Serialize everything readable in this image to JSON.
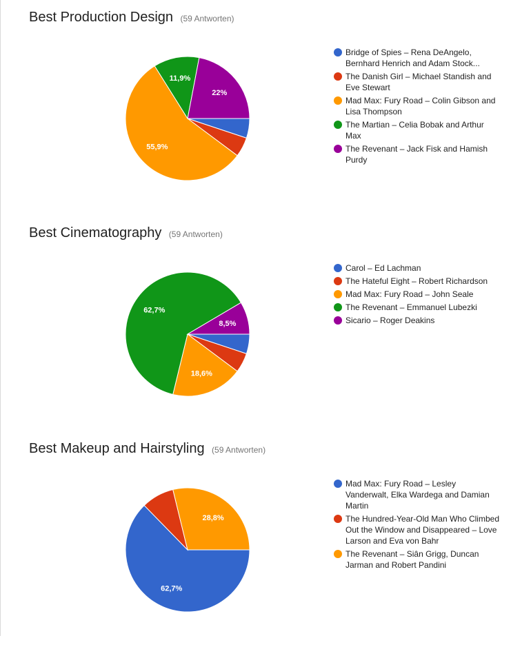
{
  "colors": {
    "blue": "#3366cc",
    "red": "#dc3912",
    "orange": "#ff9900",
    "green": "#109618",
    "purple": "#990099"
  },
  "chart_data": [
    {
      "type": "pie",
      "title": "Best Production Design",
      "subtitle": "(59 Antworten)",
      "legend_position": "right",
      "slices": [
        {
          "label": "Bridge of Spies – Rena DeAngelo, Bernhard Henrich and Adam Stockhausen",
          "value": 5.1,
          "color": "#3366cc",
          "value_label": ""
        },
        {
          "label": "The Danish Girl – Michael Standish and Eve Stewart",
          "value": 5.1,
          "color": "#dc3912",
          "value_label": ""
        },
        {
          "label": "Mad Max: Fury Road – Colin Gibson and Lisa Thompson",
          "value": 55.9,
          "color": "#ff9900",
          "value_label": "55,9%"
        },
        {
          "label": "The Martian – Celia Bobak and Arthur Max",
          "value": 11.9,
          "color": "#109618",
          "value_label": "11,9%"
        },
        {
          "label": "The Revenant – Jack Fisk and Hamish Purdy",
          "value": 22.0,
          "color": "#990099",
          "value_label": "22%"
        }
      ],
      "legend_entries": [
        "Bridge of Spies – Rena DeAngelo, Bernhard Henrich and Adam Stock...",
        "The Danish Girl – Michael Standish and Eve Stewart",
        "Mad Max: Fury Road – Colin Gibson and Lisa Thompson",
        "The Martian – Celia Bobak and Arthur Max",
        "The Revenant – Jack Fisk and Hamish Purdy"
      ]
    },
    {
      "type": "pie",
      "title": "Best Cinematography",
      "subtitle": "(59 Antworten)",
      "legend_position": "right",
      "slices": [
        {
          "label": "Carol – Ed Lachman",
          "value": 5.1,
          "color": "#3366cc",
          "value_label": ""
        },
        {
          "label": "The Hateful Eight – Robert Richardson",
          "value": 5.1,
          "color": "#dc3912",
          "value_label": ""
        },
        {
          "label": "Mad Max: Fury Road – John Seale",
          "value": 18.6,
          "color": "#ff9900",
          "value_label": "18,6%"
        },
        {
          "label": "The Revenant – Emmanuel Lubezki",
          "value": 62.7,
          "color": "#109618",
          "value_label": "62,7%"
        },
        {
          "label": "Sicario – Roger Deakins",
          "value": 8.5,
          "color": "#990099",
          "value_label": "8,5%"
        }
      ],
      "legend_entries": [
        "Carol – Ed Lachman",
        "The Hateful Eight – Robert Richardson",
        "Mad Max: Fury Road – John Seale",
        "The Revenant – Emmanuel Lubezki",
        "Sicario – Roger Deakins"
      ]
    },
    {
      "type": "pie",
      "title": "Best Makeup and Hairstyling",
      "subtitle": "(59 Antworten)",
      "legend_position": "right",
      "slices": [
        {
          "label": "Mad Max: Fury Road – Lesley Vanderwalt, Elka Wardega and Damian Martin",
          "value": 62.7,
          "color": "#3366cc",
          "value_label": "62,7%"
        },
        {
          "label": "The Hundred-Year-Old Man Who Climbed Out the Window and Disappeared – Love Larson and Eva von Bahr",
          "value": 8.5,
          "color": "#dc3912",
          "value_label": ""
        },
        {
          "label": "The Revenant – Siân Grigg, Duncan Jarman and Robert Pandini",
          "value": 28.8,
          "color": "#ff9900",
          "value_label": "28,8%"
        }
      ],
      "legend_entries": [
        "Mad Max: Fury Road – Lesley Vanderwalt, Elka Wardega and Damian Martin",
        "The Hundred-Year-Old Man Who Climbed Out the Window and Disappeared – Love Larson and Eva von Bahr",
        "The Revenant – Siân Grigg, Duncan Jarman and Robert Pandini"
      ]
    }
  ]
}
